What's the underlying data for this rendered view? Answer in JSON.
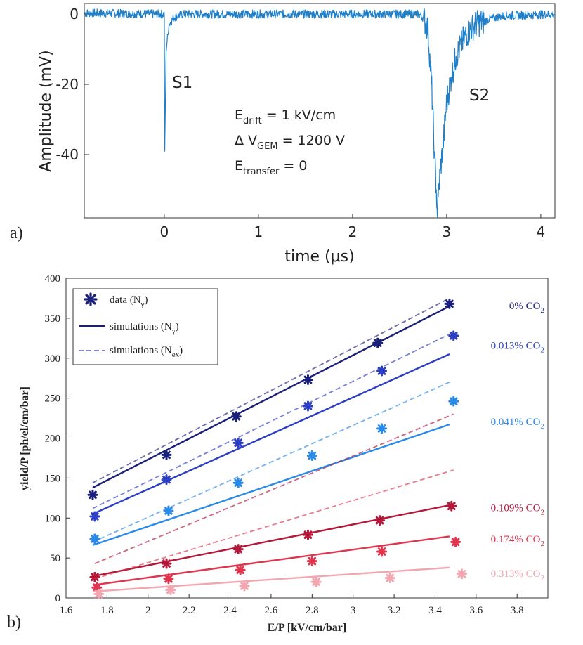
{
  "figure": {
    "panel_a_label": "a)",
    "panel_b_label": "b)"
  },
  "colors": {
    "waveform": "#1f7fc8",
    "axis": "#333333",
    "c0": "#1a1f7a",
    "c013": "#2c3fc4",
    "c041": "#2a8ae8",
    "c109": "#b3183a",
    "c174": "#e0354f",
    "c313": "#f2a6b0"
  },
  "chart_data": [
    {
      "type": "line",
      "title": "",
      "xlabel": "time (μs)",
      "ylabel": "Amplitude (mV)",
      "xlim": [
        -0.85,
        4.15
      ],
      "ylim": [
        -58,
        3
      ],
      "xticks": [
        0,
        1,
        2,
        3,
        4
      ],
      "xtick_labels": [
        "0",
        "1",
        "2",
        "3",
        "4"
      ],
      "yticks": [
        0,
        -20,
        -40
      ],
      "ytick_labels": [
        "0",
        "-20",
        "-40"
      ],
      "series": [
        {
          "name": "waveform",
          "x": [
            -0.85,
            0.0,
            0.005,
            0.02,
            0.05,
            0.1,
            0.2,
            2.7,
            2.75,
            2.8,
            2.84,
            2.87,
            2.89,
            2.9,
            2.91,
            2.93,
            2.96,
            3.0,
            3.05,
            3.1,
            3.2,
            3.3,
            3.45,
            3.6,
            4.15
          ],
          "values": [
            0.3,
            0,
            -39,
            -10,
            -3,
            -1,
            0,
            0,
            -1,
            -4,
            -20,
            -40,
            -50,
            -57,
            -52,
            -45,
            -38,
            -25,
            -18,
            -12,
            -6,
            -3,
            -1.5,
            -0.5,
            0
          ]
        }
      ],
      "annotations": {
        "s1": "S1",
        "s2": "S2",
        "edrift": {
          "main": "E",
          "sub": "drift",
          "rest": " = 1 kV/cm"
        },
        "dvgem": {
          "main": "Δ V",
          "sub": "GEM",
          "rest": " = 1200 V"
        },
        "etransfer": {
          "main": "E",
          "sub": "transfer",
          "rest": " = 0"
        }
      }
    },
    {
      "type": "scatter",
      "title": "",
      "xlabel": "E/P [kV/cm/bar]",
      "ylabel": "yield/P [ph/el/cm/bar]",
      "xlim": [
        1.6,
        3.95
      ],
      "ylim": [
        0,
        400
      ],
      "xticks": [
        1.6,
        1.8,
        2,
        2.2,
        2.4,
        2.6,
        2.8,
        3,
        3.2,
        3.4,
        3.6,
        3.8
      ],
      "xtick_labels": [
        "1.6",
        "1.8",
        "2",
        "2.2",
        "2.4",
        "2.6",
        "2.8",
        "3",
        "3.2",
        "3.4",
        "3.6",
        "3.8"
      ],
      "yticks": [
        0,
        50,
        100,
        150,
        200,
        250,
        300,
        350,
        400
      ],
      "ytick_labels": [
        "0",
        "50",
        "100",
        "150",
        "200",
        "250",
        "300",
        "350",
        "400"
      ],
      "legend": {
        "position": "top-left",
        "entries": [
          {
            "main": "data (N",
            "sub": "γ",
            "suffix": ")"
          },
          {
            "main": "simulations (N",
            "sub": "γ",
            "suffix": ")"
          },
          {
            "main": "simulations (N",
            "sub": "ex",
            "suffix": ")"
          }
        ]
      },
      "series": [
        {
          "name": "0% CO2",
          "label_main": "0% CO",
          "label_sub": "2",
          "color_key": "c0",
          "label_y": 365,
          "x": [
            1.73,
            2.09,
            2.43,
            2.78,
            3.12,
            3.47
          ],
          "values": [
            129,
            179,
            227,
            273,
            319,
            368
          ],
          "sim_ngamma": [
            [
              1.73,
              138
            ],
            [
              3.47,
              365
            ]
          ],
          "sim_nex": [
            [
              1.73,
              144
            ],
            [
              3.47,
              375
            ]
          ]
        },
        {
          "name": "0.013% CO2",
          "label_main": "0.013% CO",
          "label_sub": "2",
          "color_key": "c013",
          "label_y": 315,
          "x": [
            1.74,
            2.09,
            2.44,
            2.78,
            3.14,
            3.49
          ],
          "values": [
            102,
            148,
            194,
            240,
            284,
            328
          ],
          "sim_ngamma": [
            [
              1.73,
              105
            ],
            [
              3.47,
              305
            ]
          ],
          "sim_nex": [
            [
              1.73,
              112
            ],
            [
              3.47,
              330
            ]
          ]
        },
        {
          "name": "0.041% CO2",
          "label_main": "0.041% CO",
          "label_sub": "2",
          "color_key": "c041",
          "label_y": 220,
          "x": [
            1.74,
            2.1,
            2.44,
            2.8,
            3.14,
            3.49
          ],
          "values": [
            74,
            109,
            144,
            178,
            212,
            246
          ],
          "sim_ngamma": [
            [
              1.73,
              66
            ],
            [
              3.47,
              217
            ]
          ],
          "sim_nex": [
            [
              1.73,
              70
            ],
            [
              3.47,
              270
            ]
          ]
        },
        {
          "name": "0.109% CO2",
          "label_main": "0.109% CO",
          "label_sub": "2",
          "color_key": "c109",
          "label_y": 112,
          "x": [
            1.74,
            2.09,
            2.44,
            2.78,
            3.13,
            3.48
          ],
          "values": [
            26,
            43,
            61,
            79,
            97,
            115
          ],
          "sim_ngamma": [
            [
              1.73,
              27
            ],
            [
              3.47,
              116
            ]
          ],
          "sim_nex": [
            [
              1.74,
              43
            ],
            [
              3.49,
              230
            ]
          ]
        },
        {
          "name": "0.174% CO2",
          "label_main": "0.174% CO",
          "label_sub": "2",
          "color_key": "c174",
          "label_y": 73,
          "x": [
            1.75,
            2.1,
            2.45,
            2.8,
            3.14,
            3.5
          ],
          "values": [
            13,
            24,
            35,
            46,
            58,
            70
          ],
          "sim_ngamma": [
            [
              1.73,
              16
            ],
            [
              3.47,
              77
            ]
          ],
          "sim_nex": [
            [
              1.74,
              24
            ],
            [
              3.49,
              160
            ]
          ]
        },
        {
          "name": "0.313% CO2",
          "label_main": "0.313% CO",
          "label_sub": "2",
          "color_key": "c313",
          "label_y": 30,
          "x": [
            1.76,
            2.11,
            2.47,
            2.82,
            3.18,
            3.53
          ],
          "values": [
            5,
            10,
            15,
            20,
            25,
            30
          ],
          "sim_ngamma": [
            [
              1.73,
              8
            ],
            [
              3.47,
              38
            ]
          ],
          "sim_nex": null
        }
      ]
    }
  ]
}
